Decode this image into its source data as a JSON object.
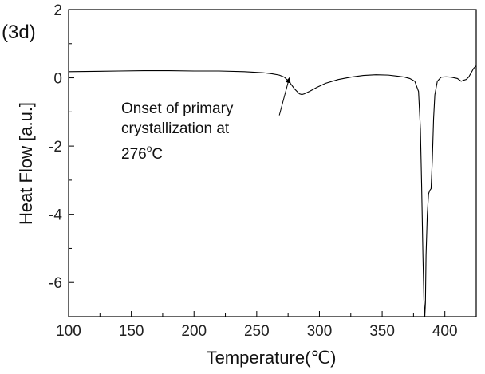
{
  "panel_label": "(3d)",
  "chart_data": {
    "type": "line",
    "xlabel": "Temperature",
    "xlabel_unit": "(℃)",
    "ylabel": "Heat Flow",
    "ylabel_unit": "[a.u.]",
    "xlim": [
      100,
      425
    ],
    "ylim": [
      -7,
      2
    ],
    "x_ticks": [
      100,
      150,
      200,
      250,
      300,
      350,
      400
    ],
    "y_ticks": [
      2,
      0,
      -2,
      -4,
      -6
    ],
    "x_tick_labels": [
      "100",
      "150",
      "200",
      "250",
      "300",
      "350",
      "400"
    ],
    "y_tick_labels": [
      "2",
      "0",
      "-2",
      "-4",
      "-6"
    ],
    "grid": false,
    "series": [
      {
        "color": "#000000",
        "x": [
          100,
          120,
          140,
          160,
          180,
          200,
          220,
          240,
          255,
          262,
          268,
          272,
          276,
          280,
          284,
          286,
          288,
          292,
          298,
          305,
          315,
          325,
          335,
          345,
          355,
          362,
          368,
          372,
          376,
          379,
          380.5,
          381.5,
          382.5,
          383.3,
          384,
          384.5,
          385,
          386,
          387,
          388,
          389,
          390,
          391,
          392,
          394,
          397,
          401,
          405,
          410,
          413,
          415,
          417,
          419,
          421,
          423,
          425
        ],
        "y": [
          0.18,
          0.19,
          0.2,
          0.21,
          0.21,
          0.2,
          0.2,
          0.18,
          0.15,
          0.12,
          0.08,
          0.02,
          -0.12,
          -0.32,
          -0.47,
          -0.49,
          -0.47,
          -0.4,
          -0.28,
          -0.16,
          -0.05,
          0.02,
          0.07,
          0.09,
          0.08,
          0.05,
          0.02,
          -0.02,
          -0.1,
          -0.4,
          -1.5,
          -3.2,
          -5.2,
          -6.5,
          -7.0,
          -6.6,
          -5.2,
          -4.0,
          -3.4,
          -3.3,
          -3.25,
          -2.4,
          -1.2,
          -0.5,
          -0.1,
          0.02,
          0.03,
          0.02,
          -0.02,
          -0.1,
          -0.07,
          -0.05,
          0.02,
          0.15,
          0.28,
          0.35
        ]
      }
    ],
    "annotation": {
      "lines": [
        "Onset of primary",
        "crystallization at"
      ],
      "value": "276",
      "degree_sup": "o",
      "unit": "C",
      "arrow_from": [
        268,
        -1.1
      ],
      "arrow_to": [
        276,
        0.0
      ]
    }
  }
}
